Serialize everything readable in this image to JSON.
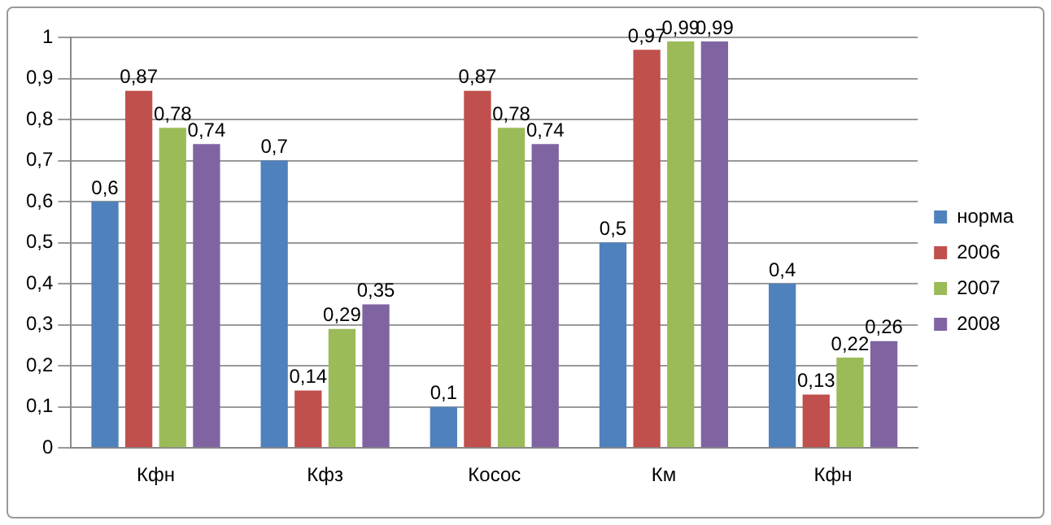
{
  "chart_data": {
    "type": "bar",
    "categories": [
      "Кфн",
      "Кфз",
      "Косос",
      "Км",
      "Кфн"
    ],
    "series": [
      {
        "name": "норма",
        "color": "#4f81bd",
        "values": [
          0.6,
          0.7,
          0.1,
          0.5,
          0.4
        ],
        "value_labels": [
          "0,6",
          "0,7",
          "0,1",
          "0,5",
          "0,4"
        ]
      },
      {
        "name": "2006",
        "color": "#c0504d",
        "values": [
          0.87,
          0.14,
          0.87,
          0.97,
          0.13
        ],
        "value_labels": [
          "0,87",
          "0,14",
          "0,87",
          "0,97",
          "0,13"
        ]
      },
      {
        "name": "2007",
        "color": "#9bbb59",
        "values": [
          0.78,
          0.29,
          0.78,
          0.99,
          0.22
        ],
        "value_labels": [
          "0,78",
          "0,29",
          "0,78",
          "0,99",
          "0,22"
        ]
      },
      {
        "name": "2008",
        "color": "#8064a2",
        "values": [
          0.74,
          0.35,
          0.74,
          0.99,
          0.26
        ],
        "value_labels": [
          "0,74",
          "0,35",
          "0,74",
          "0,99",
          "0,26"
        ]
      }
    ],
    "ylim": [
      0,
      1
    ],
    "yticks": [
      0,
      {
        "value": 0.1,
        "label": "0,1"
      },
      {
        "value": 0.2,
        "label": "0,2"
      },
      {
        "value": 0.3,
        "label": "0,3"
      },
      {
        "value": 0.4,
        "label": "0,4"
      },
      {
        "value": 0.5,
        "label": "0,5"
      },
      {
        "value": 0.6,
        "label": "0,6"
      },
      {
        "value": 0.7,
        "label": "0,7"
      },
      {
        "value": 0.8,
        "label": "0,8"
      },
      {
        "value": 0.9,
        "label": "0,9"
      },
      1
    ],
    "grid": "y",
    "legend": "right"
  }
}
